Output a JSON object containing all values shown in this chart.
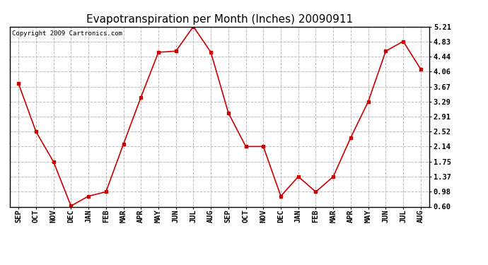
{
  "title": "Evapotranspiration per Month (Inches) 20090911",
  "copyright": "Copyright 2009 Cartronics.com",
  "months": [
    "SEP",
    "OCT",
    "NOV",
    "DEC",
    "JAN",
    "FEB",
    "MAR",
    "APR",
    "MAY",
    "JUN",
    "JUL",
    "AUG",
    "SEP",
    "OCT",
    "NOV",
    "DEC",
    "JAN",
    "FEB",
    "MAR",
    "APR",
    "MAY",
    "JUN",
    "JUL",
    "AUG"
  ],
  "values": [
    3.75,
    2.52,
    1.75,
    0.62,
    0.87,
    0.98,
    2.2,
    3.4,
    4.55,
    4.58,
    5.21,
    4.55,
    3.0,
    2.14,
    2.14,
    0.87,
    1.37,
    0.98,
    1.37,
    2.37,
    3.29,
    4.58,
    4.83,
    4.12
  ],
  "yticks": [
    0.6,
    0.98,
    1.37,
    1.75,
    2.14,
    2.52,
    2.91,
    3.29,
    3.67,
    4.06,
    4.44,
    4.83,
    5.21
  ],
  "line_color": "#cc0000",
  "marker": "s",
  "marker_size": 3,
  "bg_color": "#ffffff",
  "plot_bg_color": "#ffffff",
  "grid_color": "#bbbbbb",
  "title_fontsize": 11,
  "copyright_fontsize": 6.5,
  "tick_fontsize": 7.5
}
